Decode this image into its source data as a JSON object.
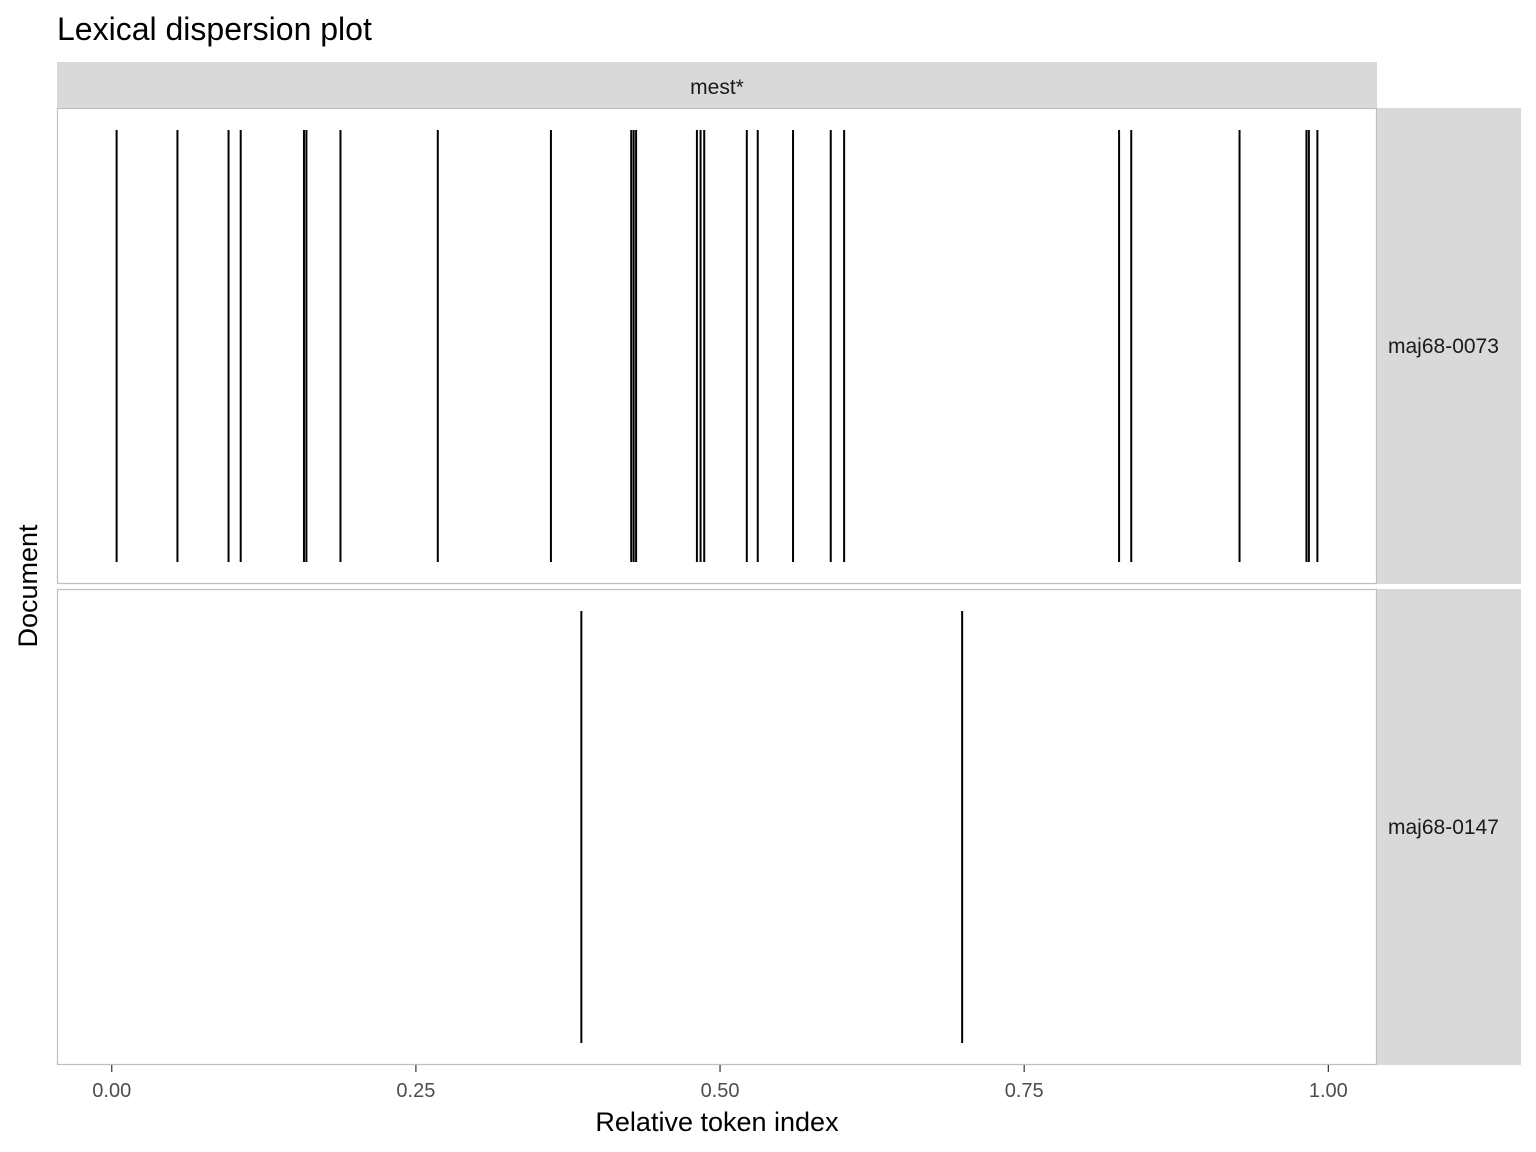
{
  "chart_data": {
    "type": "lexical-dispersion",
    "title": "Lexical dispersion plot",
    "xlabel": "Relative token index",
    "ylabel": "Document",
    "xlim": [
      -0.045,
      1.04
    ],
    "x_ticks": [
      0,
      0.25,
      0.5,
      0.75,
      1
    ],
    "x_tick_labels": [
      "0.00",
      "0.25",
      "0.50",
      "0.75",
      "1.00"
    ],
    "grid": false,
    "facet_column": "mest*",
    "panels": [
      {
        "document": "maj68-0073",
        "positions": [
          0.004,
          0.054,
          0.096,
          0.106,
          0.158,
          0.16,
          0.188,
          0.268,
          0.361,
          0.427,
          0.429,
          0.431,
          0.481,
          0.484,
          0.487,
          0.522,
          0.531,
          0.56,
          0.591,
          0.602,
          0.828,
          0.838,
          0.927,
          0.982,
          0.984,
          0.991
        ]
      },
      {
        "document": "maj68-0147",
        "positions": [
          0.386,
          0.699
        ]
      }
    ],
    "colors": {
      "line": "#000000",
      "strip_fill": "#d9d9d9",
      "panel_border": "#bfbfbf",
      "tick_text": "#4d4d4d"
    }
  }
}
